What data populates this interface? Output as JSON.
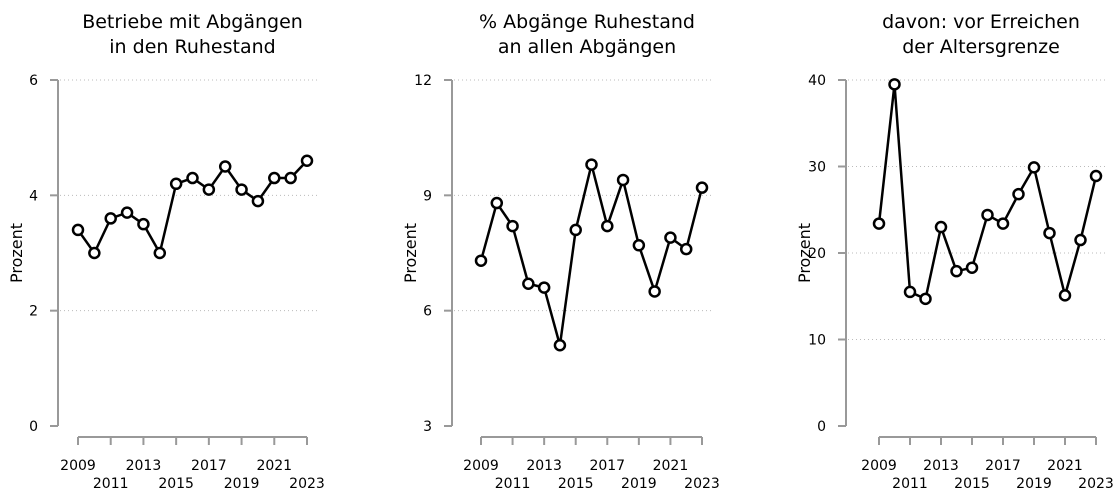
{
  "chart_data": [
    {
      "type": "line",
      "title": [
        "Betriebe mit Abgängen",
        "in den Ruhestand"
      ],
      "y_label": "Prozent",
      "x": [
        2009,
        2010,
        2011,
        2012,
        2013,
        2014,
        2015,
        2016,
        2017,
        2018,
        2019,
        2020,
        2021,
        2022,
        2023
      ],
      "series": [
        {
          "color": "#000000",
          "values": [
            3.4,
            3.0,
            3.6,
            3.7,
            3.5,
            3.0,
            4.2,
            4.3,
            4.1,
            4.5,
            4.1,
            3.9,
            4.3,
            4.3,
            4.6
          ]
        }
      ],
      "xlim": [
        2009,
        2023
      ],
      "xticks": [
        2009,
        2011,
        2013,
        2015,
        2017,
        2019,
        2021,
        2023
      ],
      "ylim": [
        0,
        6
      ],
      "yticks": [
        0,
        2,
        4,
        6
      ],
      "grid": true
    },
    {
      "type": "line",
      "title": [
        "% Abgänge Ruhestand",
        "an allen Abgängen"
      ],
      "y_label": "Prozent",
      "x": [
        2009,
        2010,
        2011,
        2012,
        2013,
        2014,
        2015,
        2016,
        2017,
        2018,
        2019,
        2020,
        2021,
        2022,
        2023
      ],
      "series": [
        {
          "color": "#000000",
          "values": [
            7.3,
            8.8,
            8.2,
            6.7,
            6.6,
            5.1,
            8.1,
            9.8,
            8.2,
            9.4,
            7.7,
            6.5,
            7.9,
            7.6,
            9.2
          ]
        }
      ],
      "xlim": [
        2009,
        2023
      ],
      "xticks": [
        2009,
        2011,
        2013,
        2015,
        2017,
        2019,
        2021,
        2023
      ],
      "ylim": [
        3,
        12
      ],
      "yticks": [
        3,
        6,
        9,
        12
      ],
      "grid": true
    },
    {
      "type": "line",
      "title": [
        "davon: vor Erreichen",
        "der Altersgrenze"
      ],
      "y_label": "Prozent",
      "x": [
        2009,
        2010,
        2011,
        2012,
        2013,
        2014,
        2015,
        2016,
        2017,
        2018,
        2019,
        2020,
        2021,
        2022,
        2023
      ],
      "series": [
        {
          "color": "#000000",
          "values": [
            23.4,
            39.5,
            15.5,
            14.7,
            23.0,
            17.9,
            18.3,
            24.4,
            23.4,
            26.8,
            29.9,
            22.3,
            15.1,
            21.5,
            28.9
          ]
        }
      ],
      "xlim": [
        2009,
        2023
      ],
      "xticks": [
        2009,
        2011,
        2013,
        2015,
        2017,
        2019,
        2021,
        2023
      ],
      "ylim": [
        0,
        40
      ],
      "yticks": [
        0,
        10,
        20,
        30,
        40
      ],
      "grid": true
    }
  ]
}
